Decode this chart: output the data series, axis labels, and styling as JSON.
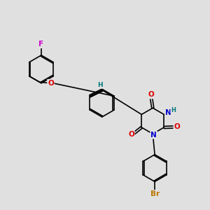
{
  "background_color": "#e0e0e0",
  "bond_color": "#000000",
  "bond_width": 1.2,
  "dbo": 0.055,
  "atom_colors": {
    "F": "#cc00cc",
    "O": "#dd0000",
    "N": "#0000cc",
    "Br": "#bb7700",
    "H": "#007777",
    "C": "#000000"
  },
  "font_size": 7.5,
  "fig_width": 3.0,
  "fig_height": 3.0,
  "dpi": 100,
  "xlim": [
    0.0,
    10.5
  ],
  "ylim": [
    1.5,
    10.0
  ]
}
